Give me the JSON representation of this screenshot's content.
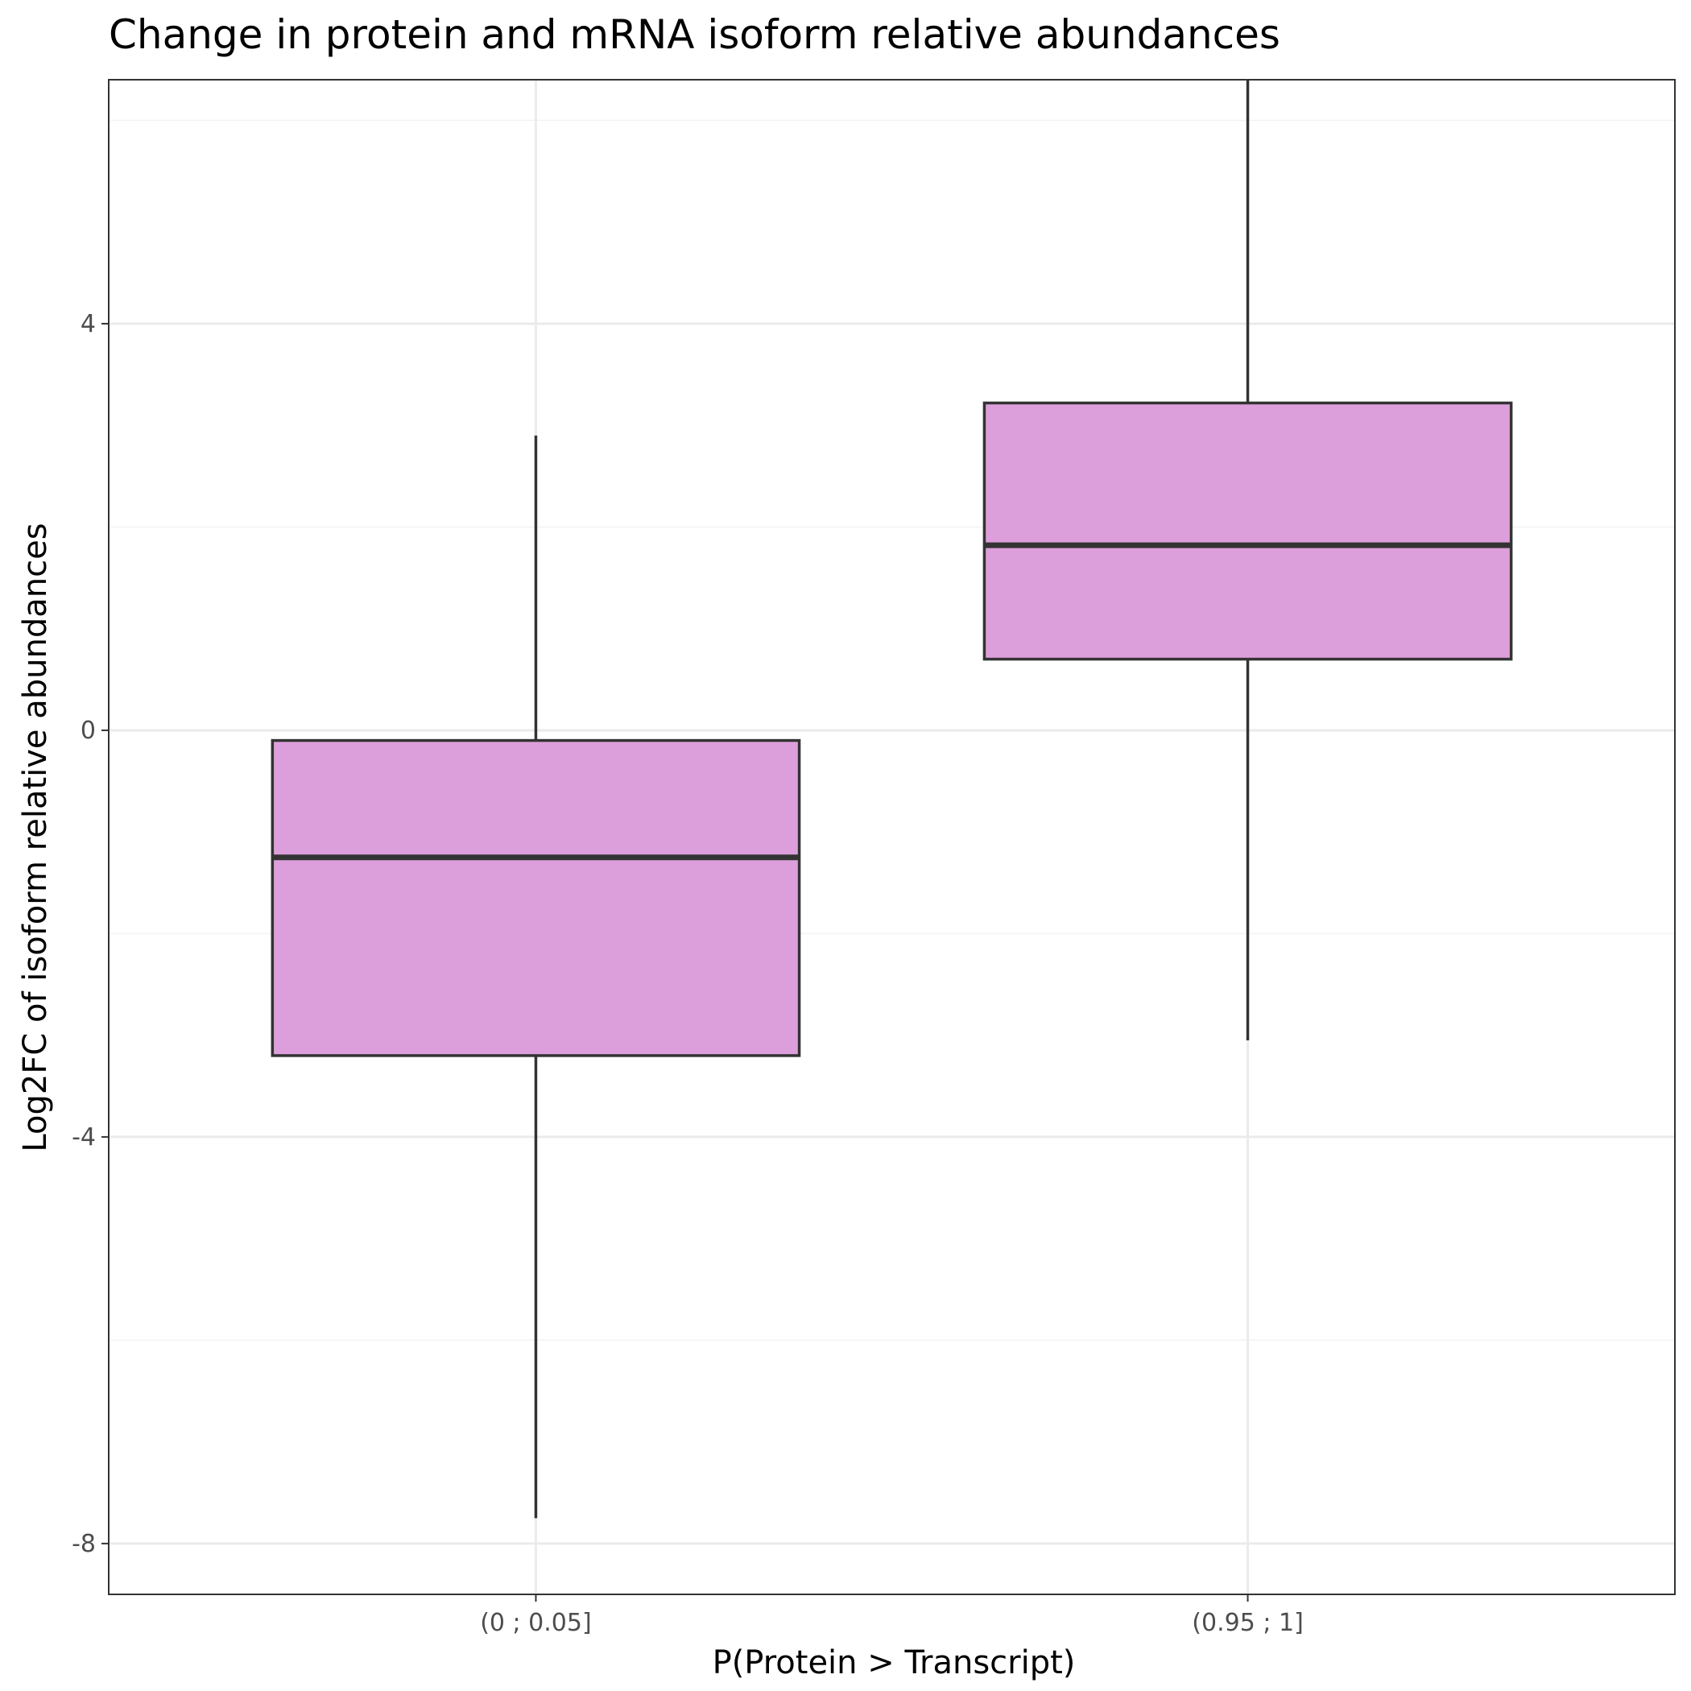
{
  "chart_data": {
    "type": "box",
    "title": "Change in protein and mRNA isoform relative abundances",
    "xlabel": "P(Protein > Transcript)",
    "ylabel": "Log2FC of isoform relative abundances",
    "categories": [
      "(0 ; 0.05]",
      "(0.95 ; 1]"
    ],
    "ylim": [
      -8.5,
      6.4
    ],
    "yticks": [
      -8,
      -4,
      0,
      4
    ],
    "ytick_labels": [
      "-8",
      "-4",
      "0",
      "4"
    ],
    "grid": true,
    "boxes": [
      {
        "category": "(0 ; 0.05]",
        "whisker_low": -7.75,
        "q1": -3.2,
        "median": -1.25,
        "q3": -0.1,
        "whisker_high": 2.9
      },
      {
        "category": "(0.95 ; 1]",
        "whisker_low": -3.05,
        "q1": 0.7,
        "median": 1.82,
        "q3": 3.22,
        "whisker_high": 6.4
      }
    ],
    "colors": {
      "box_fill": "#dd9fdb",
      "box_stroke": "#333333",
      "grid_major": "#ebebeb",
      "grid_minor": "#f2f2f2",
      "panel_border": "#333333",
      "tick_label": "#4d4d4d",
      "text": "#000000"
    }
  }
}
